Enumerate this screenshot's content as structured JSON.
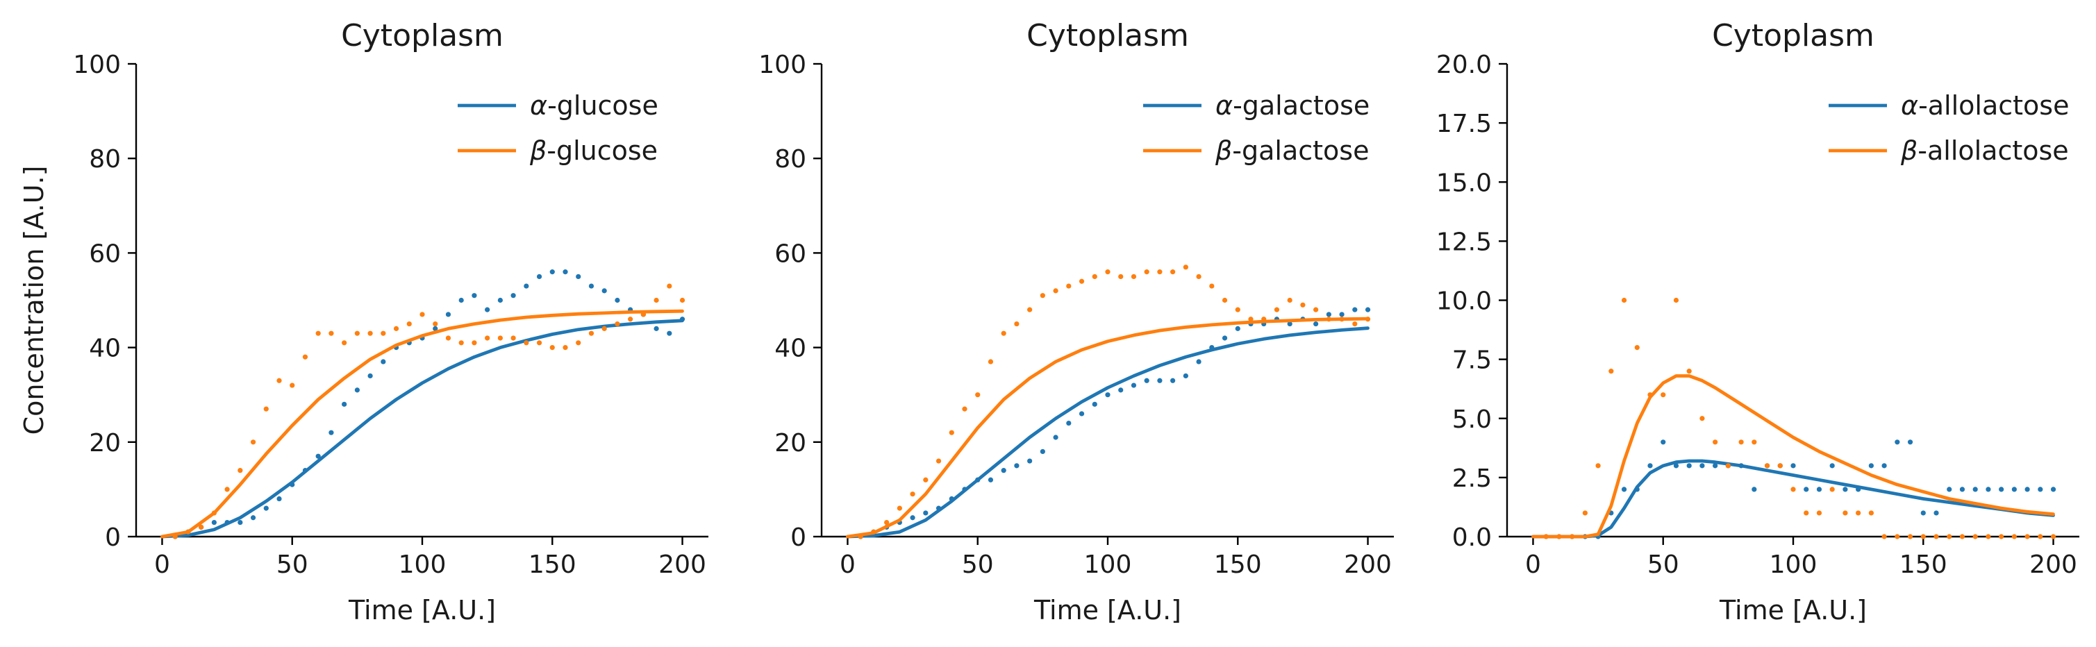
{
  "colors": {
    "blue": "#1f77b4",
    "orange": "#ff7f0e"
  },
  "chart_data": [
    {
      "type": "line",
      "title": "Cytoplasm",
      "xlabel": "Time [A.U.]",
      "ylabel": "Concentration [A.U.]",
      "xlim": [
        -10,
        210
      ],
      "ylim": [
        0,
        100
      ],
      "xticks": [
        "0",
        "50",
        "100",
        "150",
        "200"
      ],
      "yticks": [
        "0",
        "20",
        "40",
        "60",
        "80",
        "100"
      ],
      "legend": "top-right",
      "series": [
        {
          "name": "α-glucose",
          "greek": "α",
          "suffix": "-glucose",
          "color": "#1f77b4",
          "model_x": [
            0,
            10,
            20,
            30,
            40,
            50,
            60,
            70,
            80,
            90,
            100,
            110,
            120,
            130,
            140,
            150,
            160,
            170,
            180,
            190,
            200
          ],
          "model_y": [
            0,
            0.3,
            1.5,
            4,
            7.5,
            11.5,
            16,
            20.5,
            25,
            29,
            32.5,
            35.5,
            38,
            40,
            41.5,
            42.8,
            43.8,
            44.5,
            45,
            45.4,
            45.7
          ],
          "obs_x": [
            5,
            10,
            15,
            20,
            25,
            30,
            35,
            40,
            45,
            50,
            55,
            60,
            65,
            70,
            75,
            80,
            85,
            90,
            95,
            100,
            105,
            110,
            115,
            120,
            125,
            130,
            135,
            140,
            145,
            150,
            155,
            160,
            165,
            170,
            175,
            180,
            185,
            190,
            195,
            200
          ],
          "obs_y": [
            0,
            1,
            2,
            3,
            3,
            3,
            4,
            6,
            8,
            11,
            14,
            17,
            22,
            28,
            31,
            34,
            37,
            40,
            41,
            42,
            44,
            47,
            50,
            51,
            48,
            50,
            51,
            53,
            55,
            56,
            56,
            55,
            53,
            52,
            50,
            48,
            47,
            44,
            43,
            46
          ]
        },
        {
          "name": "β-glucose",
          "greek": "β",
          "suffix": "-glucose",
          "color": "#ff7f0e",
          "model_x": [
            0,
            10,
            20,
            30,
            40,
            50,
            60,
            70,
            80,
            90,
            100,
            110,
            120,
            130,
            140,
            150,
            160,
            170,
            180,
            190,
            200
          ],
          "model_y": [
            0,
            1,
            5,
            11,
            17.5,
            23.5,
            29,
            33.5,
            37.5,
            40.5,
            42.5,
            44,
            45,
            45.8,
            46.4,
            46.8,
            47.1,
            47.3,
            47.5,
            47.6,
            47.7
          ],
          "obs_x": [
            5,
            10,
            15,
            20,
            25,
            30,
            35,
            40,
            45,
            50,
            55,
            60,
            65,
            70,
            75,
            80,
            85,
            90,
            95,
            100,
            105,
            110,
            115,
            120,
            125,
            130,
            135,
            140,
            145,
            150,
            155,
            160,
            165,
            170,
            175,
            180,
            185,
            190,
            195,
            200
          ],
          "obs_y": [
            0,
            1,
            2,
            5,
            10,
            14,
            20,
            27,
            33,
            32,
            38,
            43,
            43,
            41,
            43,
            43,
            43,
            44,
            45,
            47,
            45,
            42,
            41,
            41,
            42,
            42,
            42,
            41,
            41,
            40,
            40,
            41,
            43,
            44,
            45,
            46,
            47,
            50,
            53,
            50
          ]
        }
      ]
    },
    {
      "type": "line",
      "title": "Cytoplasm",
      "xlabel": "Time [A.U.]",
      "ylabel": "",
      "xlim": [
        -10,
        210
      ],
      "ylim": [
        0,
        100
      ],
      "xticks": [
        "0",
        "50",
        "100",
        "150",
        "200"
      ],
      "yticks": [
        "0",
        "20",
        "40",
        "60",
        "80",
        "100"
      ],
      "legend": "top-right",
      "series": [
        {
          "name": "α-galactose",
          "greek": "α",
          "suffix": "-galactose",
          "color": "#1f77b4",
          "model_x": [
            0,
            10,
            20,
            30,
            40,
            50,
            60,
            70,
            80,
            90,
            100,
            110,
            120,
            130,
            140,
            150,
            160,
            170,
            180,
            190,
            200
          ],
          "model_y": [
            0,
            0.2,
            1,
            3.5,
            7.5,
            12,
            16.5,
            21,
            25,
            28.5,
            31.5,
            34,
            36.2,
            38,
            39.5,
            40.8,
            41.8,
            42.6,
            43.2,
            43.7,
            44.1
          ],
          "obs_x": [
            5,
            10,
            15,
            20,
            25,
            30,
            35,
            40,
            45,
            50,
            55,
            60,
            65,
            70,
            75,
            80,
            85,
            90,
            95,
            100,
            105,
            110,
            115,
            120,
            125,
            130,
            135,
            140,
            145,
            150,
            155,
            160,
            165,
            170,
            175,
            180,
            185,
            190,
            195,
            200
          ],
          "obs_y": [
            0,
            1,
            2,
            3,
            4,
            5,
            6,
            8,
            10,
            12,
            12,
            14,
            15,
            16,
            18,
            21,
            24,
            26,
            28,
            30,
            31,
            32,
            33,
            33,
            33,
            34,
            37,
            40,
            42,
            44,
            45,
            45,
            46,
            45,
            46,
            45,
            47,
            47,
            48,
            48
          ]
        },
        {
          "name": "β-galactose",
          "greek": "β",
          "suffix": "-galactose",
          "color": "#ff7f0e",
          "model_x": [
            0,
            10,
            20,
            30,
            40,
            50,
            60,
            70,
            80,
            90,
            100,
            110,
            120,
            130,
            140,
            150,
            160,
            170,
            180,
            190,
            200
          ],
          "model_y": [
            0,
            0.8,
            3.5,
            9,
            16,
            23,
            29,
            33.5,
            37,
            39.5,
            41.3,
            42.6,
            43.6,
            44.3,
            44.8,
            45.2,
            45.5,
            45.7,
            45.9,
            46,
            46.1
          ],
          "obs_x": [
            5,
            10,
            15,
            20,
            25,
            30,
            35,
            40,
            45,
            50,
            55,
            60,
            65,
            70,
            75,
            80,
            85,
            90,
            95,
            100,
            105,
            110,
            115,
            120,
            125,
            130,
            135,
            140,
            145,
            150,
            155,
            160,
            165,
            170,
            175,
            180,
            185,
            190,
            195,
            200
          ],
          "obs_y": [
            0,
            1,
            3,
            6,
            9,
            12,
            16,
            22,
            27,
            30,
            37,
            43,
            45,
            48,
            51,
            52,
            53,
            54,
            55,
            56,
            55,
            55,
            56,
            56,
            56,
            57,
            55,
            53,
            50,
            48,
            46,
            46,
            48,
            50,
            49,
            48,
            46,
            46,
            45,
            46
          ]
        }
      ]
    },
    {
      "type": "line",
      "title": "Cytoplasm",
      "xlabel": "Time [A.U.]",
      "ylabel": "",
      "xlim": [
        -10,
        210
      ],
      "ylim": [
        0,
        20
      ],
      "xticks": [
        "0",
        "50",
        "100",
        "150",
        "200"
      ],
      "yticks": [
        "0.0",
        "2.5",
        "5.0",
        "7.5",
        "10.0",
        "12.5",
        "15.0",
        "17.5",
        "20.0"
      ],
      "legend": "top-right",
      "series": [
        {
          "name": "α-allolactose",
          "greek": "α",
          "suffix": "-allolactose",
          "color": "#1f77b4",
          "model_x": [
            0,
            10,
            20,
            25,
            30,
            35,
            40,
            45,
            50,
            55,
            60,
            65,
            70,
            80,
            90,
            100,
            110,
            120,
            130,
            140,
            150,
            160,
            170,
            180,
            190,
            200
          ],
          "model_y": [
            0,
            0,
            0,
            0.05,
            0.4,
            1.2,
            2.1,
            2.7,
            3.0,
            3.15,
            3.2,
            3.2,
            3.15,
            3.0,
            2.8,
            2.6,
            2.4,
            2.2,
            2.0,
            1.8,
            1.6,
            1.45,
            1.3,
            1.15,
            1.0,
            0.9
          ],
          "obs_x": [
            5,
            10,
            15,
            20,
            25,
            30,
            35,
            40,
            45,
            50,
            55,
            60,
            65,
            70,
            75,
            80,
            85,
            90,
            95,
            100,
            105,
            110,
            115,
            120,
            125,
            130,
            135,
            140,
            145,
            150,
            155,
            160,
            165,
            170,
            175,
            180,
            185,
            190,
            195,
            200
          ],
          "obs_y": [
            0,
            0,
            0,
            0,
            0,
            1,
            2,
            2,
            3,
            4,
            3,
            3,
            3,
            3,
            3,
            3,
            2,
            3,
            3,
            3,
            2,
            2,
            3,
            2,
            2,
            3,
            3,
            4,
            4,
            1,
            1,
            2,
            2,
            2,
            2,
            2,
            2,
            2,
            2,
            2
          ]
        },
        {
          "name": "β-allolactose",
          "greek": "β",
          "suffix": "-allolactose",
          "color": "#ff7f0e",
          "model_x": [
            0,
            10,
            20,
            25,
            30,
            35,
            40,
            45,
            50,
            55,
            60,
            65,
            70,
            80,
            90,
            100,
            110,
            120,
            130,
            140,
            150,
            160,
            170,
            180,
            190,
            200
          ],
          "model_y": [
            0,
            0,
            0,
            0.1,
            1.3,
            3.2,
            4.8,
            5.9,
            6.5,
            6.8,
            6.8,
            6.6,
            6.3,
            5.6,
            4.9,
            4.2,
            3.6,
            3.1,
            2.6,
            2.2,
            1.9,
            1.6,
            1.4,
            1.2,
            1.05,
            0.95
          ],
          "obs_x": [
            5,
            10,
            15,
            20,
            25,
            30,
            35,
            40,
            45,
            50,
            55,
            60,
            65,
            70,
            75,
            80,
            85,
            90,
            95,
            100,
            105,
            110,
            115,
            120,
            125,
            130,
            135,
            140,
            145,
            150,
            155,
            160,
            165,
            170,
            175,
            180,
            185,
            190,
            195,
            200
          ],
          "obs_y": [
            0,
            0,
            0,
            1,
            3,
            7,
            10,
            8,
            6,
            6,
            10,
            7,
            5,
            4,
            3,
            4,
            4,
            3,
            3,
            2,
            1,
            1,
            2,
            1,
            1,
            1,
            0,
            0,
            0,
            0,
            0,
            0,
            0,
            0,
            0,
            0,
            0,
            0,
            0,
            0
          ]
        }
      ]
    }
  ]
}
